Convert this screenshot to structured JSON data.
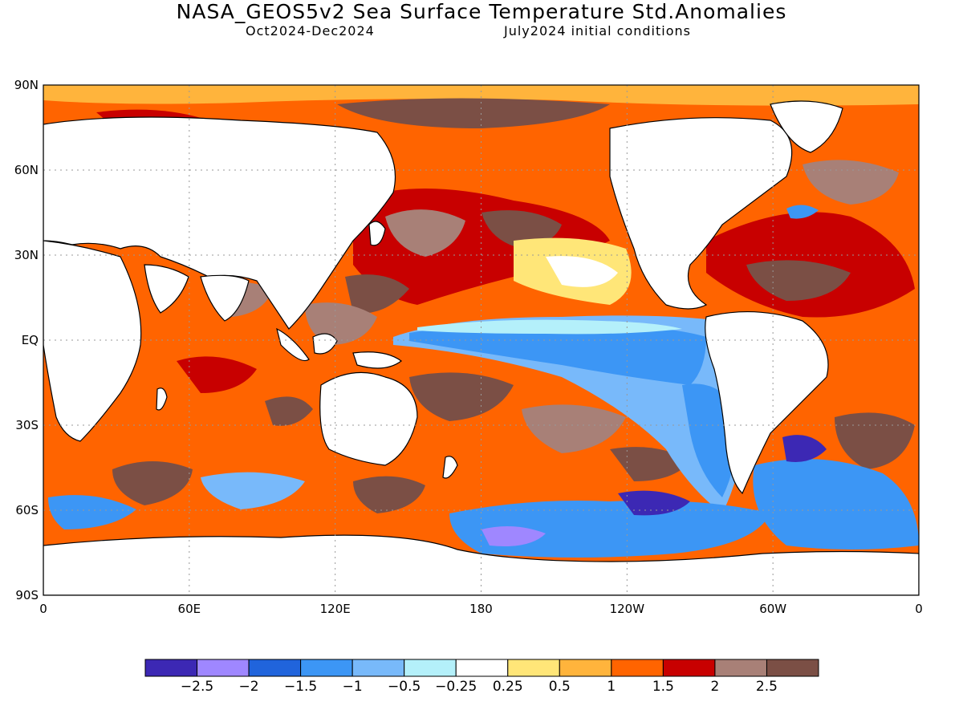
{
  "title": "NASA_GEOS5v2 Sea Surface Temperature Std.Anomalies",
  "subtitle_left": "Oct2024-Dec2024",
  "subtitle_right": "July2024 initial conditions",
  "axes": {
    "lat_ticks": [
      "90N",
      "60N",
      "30N",
      "EQ",
      "30S",
      "60S",
      "90S"
    ],
    "lon_ticks": [
      "0",
      "60E",
      "120E",
      "180",
      "120W",
      "60W",
      "0"
    ]
  },
  "colors": {
    "land": "#ffffff",
    "coast": "#000000",
    "bins": [
      "#3c28b4",
      "#9f87ff",
      "#2064dc",
      "#3c96f5",
      "#78b9fa",
      "#b4f0fa",
      "#ffffff",
      "#ffe678",
      "#ffb43c",
      "#ff6400",
      "#c80000",
      "#a88077",
      "#7b4f45"
    ]
  },
  "legend": {
    "labels": [
      "−2.5",
      "−2",
      "−1.5",
      "−1",
      "−0.5",
      "−0.25",
      "0.25",
      "0.5",
      "1",
      "1.5",
      "2",
      "2.5"
    ]
  },
  "map_data": {
    "type": "filled-contour-map",
    "field": "SST standardized anomaly",
    "lon_range": [
      0,
      360
    ],
    "lat_range": [
      -90,
      90
    ],
    "features": [
      {
        "region": "Equatorial central-eastern Pacific",
        "anomaly_range": [
          -1.5,
          -0.5
        ]
      },
      {
        "region": "Southeast Pacific near South America",
        "anomaly_range": [
          -2,
          -1
        ]
      },
      {
        "region": "Southern Ocean south of 55S",
        "anomaly_range": [
          -2.5,
          -1
        ]
      },
      {
        "region": "North Pacific",
        "anomaly_range": [
          1.5,
          3
        ]
      },
      {
        "region": "Indian Ocean",
        "anomaly_range": [
          0.5,
          2
        ]
      },
      {
        "region": "North Atlantic",
        "anomaly_range": [
          1,
          3
        ]
      },
      {
        "region": "Arctic margins",
        "anomaly_range": [
          1,
          3
        ]
      },
      {
        "region": "Western Pacific warm pool",
        "anomaly_range": [
          1.5,
          3
        ]
      },
      {
        "region": "South Pacific and South Indian mid-latitudes",
        "anomaly_range": [
          0.5,
          3
        ]
      }
    ]
  }
}
